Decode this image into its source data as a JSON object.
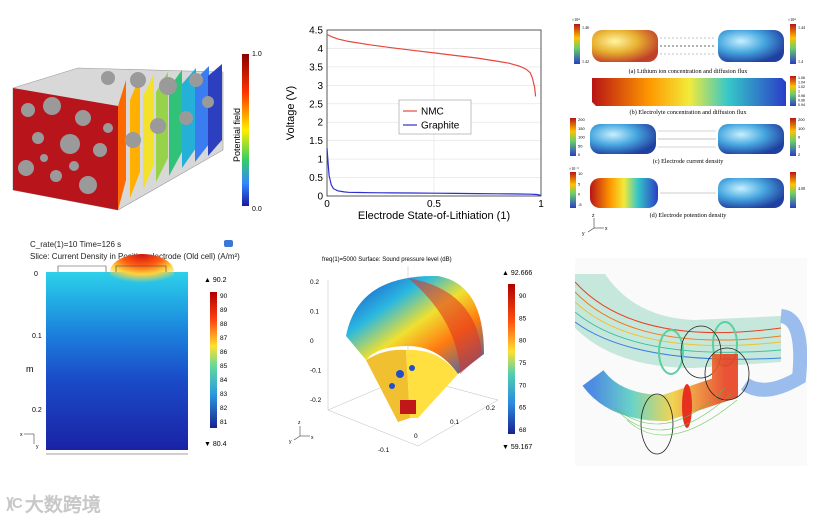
{
  "panels": {
    "potential": {
      "colorbar_title": "Potential field",
      "cb_max": "1.0",
      "cb_min": "0.0"
    },
    "cell_stack": {
      "captions": [
        "(a) Lithium ion concentration and diffusion flux",
        "(b) Electrolyte concentration and diffusion flux",
        "(c) Electrode current density",
        "(d) Electrode potention density"
      ],
      "scales": {
        "a_left_exp": "×10⁴",
        "a_left_top": "1.46",
        "a_left_bottom": "1.42",
        "a_right_exp": "×10⁴",
        "a_right_top": "1.44",
        "a_right_bottom": "1.4",
        "b_ticks": [
          "1.06",
          "1.04",
          "1.02",
          "1",
          "0.98",
          "0.96",
          "0.94"
        ],
        "c_left_ticks": [
          "200",
          "150",
          "100",
          "50",
          "0"
        ],
        "c_right_ticks": [
          "200",
          "100",
          "0",
          "1",
          "2"
        ],
        "d_left_exp": "×10⁻³",
        "d_left_ticks": [
          "10",
          "5",
          "0",
          "-5"
        ],
        "d_right_tick": "4.08"
      },
      "axes": {
        "x": "x",
        "y": "y",
        "z": "z"
      }
    },
    "current_density": {
      "title_line1": "C_rate(1)=10  Time=126 s",
      "title_line2": "Slice: Current Density in Positive electrode (Old cell) (A/m²)",
      "axis_unit": "m",
      "ticks": [
        "0",
        "0.1",
        "0.2"
      ],
      "cb_ticks": [
        "90",
        "89",
        "88",
        "87",
        "86",
        "85",
        "84",
        "83",
        "82",
        "81"
      ],
      "max_label": "▲ 90.2",
      "min_label": "▼ 80.4",
      "axis_x": "x",
      "axis_y": "y"
    },
    "acoustic": {
      "title": "freq(1)=5000   Surface: Sound pressure level (dB)",
      "max_label": "▲ 92.666",
      "min_label": "▼ 59.167",
      "cb_ticks": [
        "90",
        "85",
        "80",
        "75",
        "70",
        "65",
        "68"
      ],
      "z_ticks": [
        "0.2",
        "0.1",
        "0",
        "-0.1",
        "-0.2"
      ],
      "x_ticks": [
        "-0.1",
        "0",
        "0.1",
        "0.2"
      ],
      "axes": {
        "x": "x",
        "y": "y",
        "z": "z"
      }
    },
    "watermark": {
      "text": "大数跨境"
    }
  },
  "chart_data": {
    "type": "line",
    "title": "",
    "xlabel": "Electrode State-of-Lithiation (1)",
    "ylabel": "Voltage (V)",
    "xlim": [
      0,
      1
    ],
    "ylim": [
      0,
      4.5
    ],
    "x_ticks": [
      "0",
      "0.5",
      "1"
    ],
    "y_ticks": [
      "0",
      "0.5",
      "1",
      "1.5",
      "2",
      "2.5",
      "3",
      "3.5",
      "4",
      "4.5"
    ],
    "grid": true,
    "legend": "center",
    "series": [
      {
        "name": "NMC",
        "color": "#e8453c",
        "x": [
          0,
          0.02,
          0.05,
          0.1,
          0.2,
          0.3,
          0.4,
          0.5,
          0.6,
          0.7,
          0.8,
          0.85,
          0.9,
          0.93,
          0.95,
          0.96,
          0.97,
          0.975
        ],
        "y": [
          4.38,
          4.32,
          4.26,
          4.19,
          4.1,
          4.02,
          3.95,
          3.88,
          3.81,
          3.74,
          3.65,
          3.6,
          3.52,
          3.44,
          3.34,
          3.2,
          2.95,
          2.7
        ]
      },
      {
        "name": "Graphite",
        "color": "#2d2fcf",
        "x": [
          0,
          0.005,
          0.01,
          0.02,
          0.03,
          0.05,
          0.08,
          0.1,
          0.15,
          0.2,
          0.3,
          0.4,
          0.5,
          0.6,
          0.7,
          0.8,
          0.9,
          0.95,
          0.98,
          1.0
        ],
        "y": [
          1.3,
          0.9,
          0.55,
          0.3,
          0.2,
          0.14,
          0.11,
          0.1,
          0.095,
          0.09,
          0.085,
          0.08,
          0.075,
          0.07,
          0.065,
          0.06,
          0.055,
          0.05,
          0.04,
          0.02
        ]
      }
    ]
  }
}
